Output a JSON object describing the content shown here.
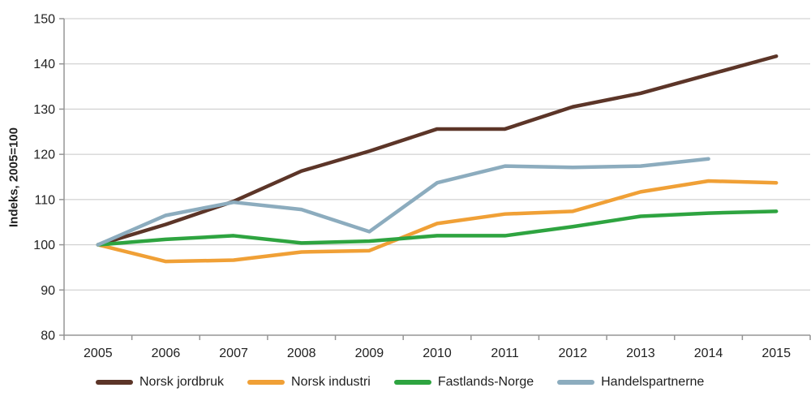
{
  "chart_data": {
    "type": "line",
    "categories": [
      "2005",
      "2006",
      "2007",
      "2008",
      "2009",
      "2010",
      "2011",
      "2012",
      "2013",
      "2014",
      "2015"
    ],
    "series": [
      {
        "name": "Norsk jordbruk",
        "color": "#5C3528",
        "values": [
          100,
          104.5,
          109.6,
          116.3,
          120.7,
          125.6,
          125.6,
          130.5,
          133.5,
          137.6,
          141.7
        ]
      },
      {
        "name": "Norsk industri",
        "color": "#F0A036",
        "values": [
          100,
          96.3,
          96.6,
          98.4,
          98.7,
          104.7,
          106.8,
          107.4,
          111.7,
          114.1,
          113.7
        ]
      },
      {
        "name": "Fastlands-Norge",
        "color": "#2EA440",
        "values": [
          100,
          101.2,
          102,
          100.4,
          100.8,
          102,
          102,
          104,
          106.3,
          107,
          107.4
        ]
      },
      {
        "name": "Handelspartnerne",
        "color": "#8CACBE",
        "values": [
          100,
          106.5,
          109.4,
          107.8,
          102.9,
          113.7,
          117.4,
          117.1,
          117.4,
          119,
          null
        ]
      }
    ],
    "title": "",
    "xlabel": "",
    "ylabel": "Indeks, 2005=100",
    "ylim": [
      80,
      150
    ],
    "yticks": [
      80,
      90,
      100,
      110,
      120,
      130,
      140,
      150
    ],
    "grid": true,
    "legend_position": "bottom",
    "line_width": 4.5,
    "colors": {
      "gridline": "#C8C8C8",
      "axis": "#959595",
      "text": "#1F1F1F",
      "background": "#FFFFFF"
    }
  }
}
